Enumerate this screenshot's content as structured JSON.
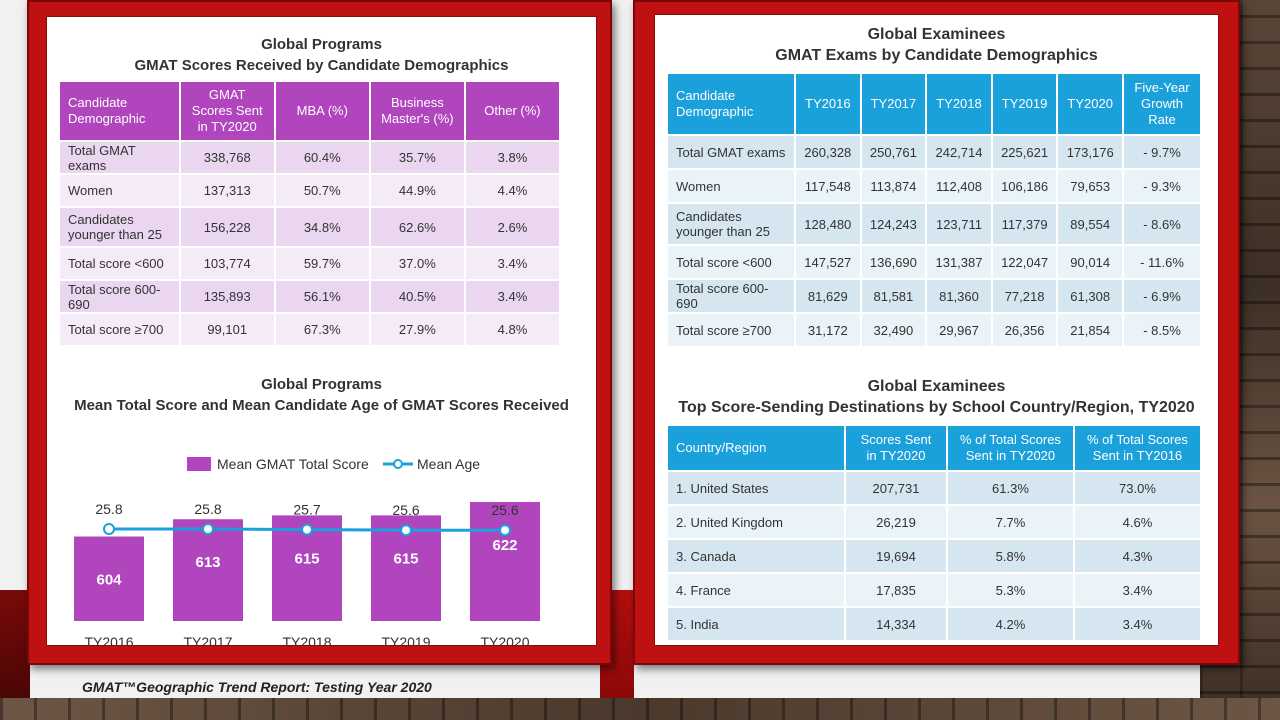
{
  "footer": "GMAT™Geographic Trend Report: Testing Year 2020",
  "left": {
    "table_title_1": "Global Programs",
    "table_title_2": "GMAT Scores Received by Candidate Demographics",
    "headers": [
      "Candidate Demographic",
      "GMAT Scores Sent in TY2020",
      "MBA (%)",
      "Business Master's (%)",
      "Other (%)"
    ],
    "rows": [
      [
        "Total GMAT exams",
        "338,768",
        "60.4%",
        "35.7%",
        "3.8%"
      ],
      [
        "Women",
        "137,313",
        "50.7%",
        "44.9%",
        "4.4%"
      ],
      [
        "Candidates younger than 25",
        "156,228",
        "34.8%",
        "62.6%",
        "2.6%"
      ],
      [
        "Total score <600",
        "103,774",
        "59.7%",
        "37.0%",
        "3.4%"
      ],
      [
        "Total score 600-690",
        "135,893",
        "56.1%",
        "40.5%",
        "3.4%"
      ],
      [
        "Total score ≥700",
        "99,101",
        "67.3%",
        "27.9%",
        "4.8%"
      ]
    ]
  },
  "right": {
    "table1_title_1": "Global Examinees",
    "table1_title_2": "GMAT Exams by Candidate Demographics",
    "headers": [
      "Candidate Demographic",
      "TY2016",
      "TY2017",
      "TY2018",
      "TY2019",
      "TY2020",
      "Five-Year Growth Rate"
    ],
    "rows": [
      [
        "Total GMAT exams",
        "260,328",
        "250,761",
        "242,714",
        "225,621",
        "173,176",
        "- 9.7%"
      ],
      [
        "Women",
        "117,548",
        "113,874",
        "112,408",
        "106,186",
        "79,653",
        "- 9.3%"
      ],
      [
        "Candidates younger than 25",
        "128,480",
        "124,243",
        "123,711",
        "117,379",
        "89,554",
        "- 8.6%"
      ],
      [
        "Total score <600",
        "147,527",
        "136,690",
        "131,387",
        "122,047",
        "90,014",
        "- 11.6%"
      ],
      [
        "Total score 600-690",
        "81,629",
        "81,581",
        "81,360",
        "77,218",
        "61,308",
        "- 6.9%"
      ],
      [
        "Total score ≥700",
        "31,172",
        "32,490",
        "29,967",
        "26,356",
        "21,854",
        "- 8.5%"
      ]
    ],
    "table2_title_1": "Global Examinees",
    "table2_title_2": "Top Score-Sending Destinations by School Country/Region, TY2020",
    "headers2": [
      "Country/Region",
      "Scores Sent in TY2020",
      "% of Total Scores Sent in TY2020",
      "% of Total Scores Sent in TY2016"
    ],
    "rows2": [
      [
        "1. United States",
        "207,731",
        "61.3%",
        "73.0%"
      ],
      [
        "2. United Kingdom",
        "26,219",
        "7.7%",
        "4.6%"
      ],
      [
        "3. Canada",
        "19,694",
        "5.8%",
        "4.3%"
      ],
      [
        "4. France",
        "17,835",
        "5.3%",
        "3.4%"
      ],
      [
        "5. India",
        "14,334",
        "4.2%",
        "3.4%"
      ]
    ]
  },
  "chart_data": {
    "type": "bar",
    "title": "Global Programs",
    "subtitle": "Mean Total Score and Mean Candidate Age of GMAT Scores Received",
    "categories": [
      "TY2016",
      "TY2017",
      "TY2018",
      "TY2019",
      "TY2020"
    ],
    "series": [
      {
        "name": "Mean GMAT Total Score",
        "type": "bar",
        "values": [
          604,
          613,
          615,
          615,
          622
        ],
        "color": "#b045bd"
      },
      {
        "name": "Mean Age",
        "type": "line",
        "values": [
          25.8,
          25.8,
          25.7,
          25.6,
          25.6
        ],
        "color": "#1aa1dc"
      }
    ],
    "legend": "top",
    "grid": false
  }
}
